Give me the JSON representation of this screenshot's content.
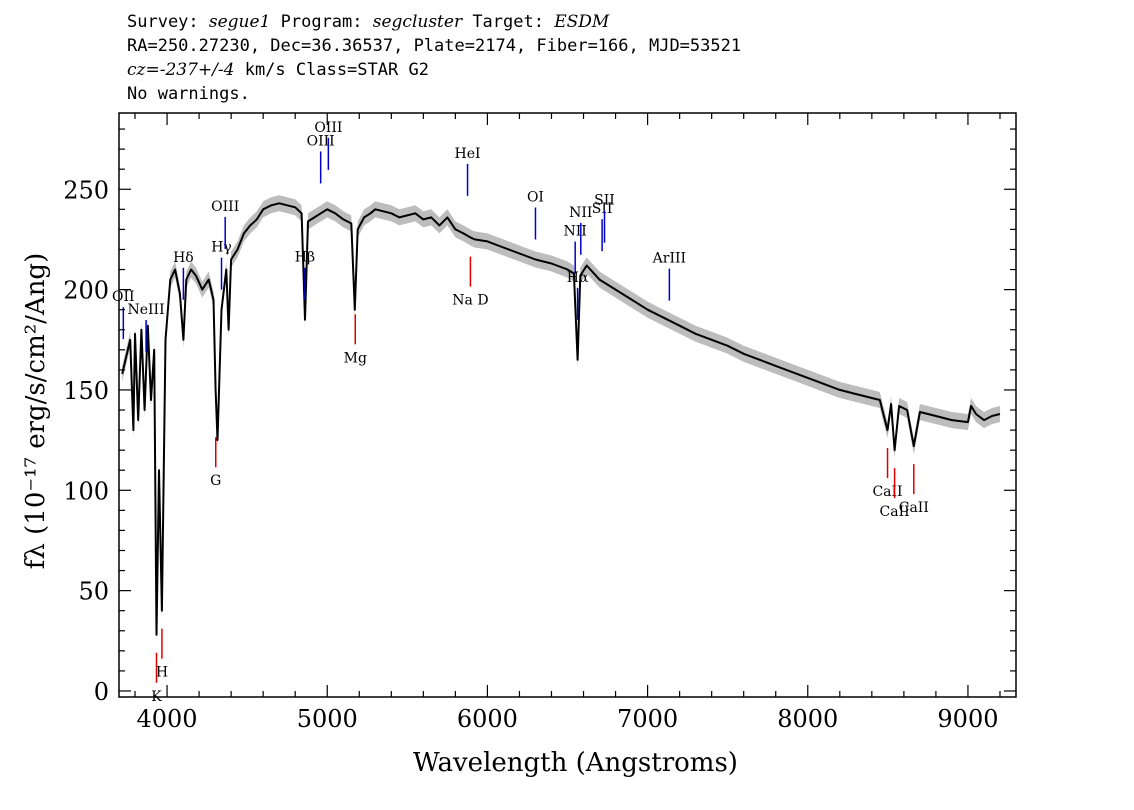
{
  "header": {
    "line1_parts": [
      "Survey: ",
      "segue1",
      " Program: ",
      "segcluster",
      " Target: ",
      "ESDM"
    ],
    "line2": "RA=250.27230, Dec=36.36537, Plate=2174, Fiber=166, MJD=53521",
    "line3_parts": [
      "cz=",
      "-237+/-4",
      " km/s Class=STAR G2"
    ],
    "line4": "No warnings."
  },
  "chart_data": {
    "type": "line",
    "xlabel": "Wavelength (Angstroms)",
    "ylabel": "fλ (10⁻¹⁷ erg/s/cm²/Ang)",
    "xlim": [
      3700,
      9300
    ],
    "ylim": [
      -3,
      288
    ],
    "x_ticks": [
      4000,
      5000,
      6000,
      7000,
      8000,
      9000
    ],
    "y_ticks": [
      0,
      50,
      100,
      150,
      200,
      250
    ],
    "grid": false,
    "legend": "none",
    "colors": {
      "flux": "#000000",
      "error_band": "#bdbdbd",
      "emission": "#0000cc",
      "absorption": "#dd0000"
    },
    "series": [
      {
        "values_x": [
          3720,
          3770,
          3790,
          3800,
          3820,
          3840,
          3860,
          3880,
          3900,
          3920,
          3934,
          3950,
          3968,
          3990,
          4020,
          4050,
          4080,
          4102,
          4120,
          4150,
          4180,
          4220,
          4260,
          4290,
          4303,
          4315,
          4340,
          4370,
          4384,
          4400,
          4440,
          4480,
          4520,
          4560,
          4600,
          4650,
          4700,
          4750,
          4800,
          4840,
          4861,
          4880,
          4920,
          4960,
          5000,
          5050,
          5100,
          5150,
          5172,
          5190,
          5230,
          5270,
          5300,
          5350,
          5400,
          5450,
          5500,
          5550,
          5600,
          5650,
          5700,
          5750,
          5800,
          5850,
          5893,
          5920,
          6000,
          6100,
          6200,
          6300,
          6400,
          6500,
          6540,
          6563,
          6580,
          6620,
          6700,
          6800,
          6900,
          7000,
          7100,
          7200,
          7300,
          7400,
          7500,
          7600,
          7700,
          7800,
          7900,
          8000,
          8100,
          8200,
          8300,
          8400,
          8450,
          8498,
          8520,
          8542,
          8570,
          8620,
          8662,
          8700,
          8800,
          8900,
          9000,
          9020,
          9050,
          9100,
          9150,
          9200
        ],
        "values_y": [
          158,
          175,
          130,
          178,
          135,
          180,
          140,
          182,
          145,
          170,
          28,
          110,
          40,
          175,
          205,
          210,
          198,
          175,
          205,
          210,
          207,
          200,
          205,
          195,
          150,
          125,
          190,
          210,
          180,
          215,
          220,
          228,
          232,
          235,
          240,
          242,
          243,
          242,
          241,
          238,
          185,
          234,
          236,
          238,
          240,
          238,
          235,
          233,
          190,
          230,
          236,
          238,
          240,
          239,
          238,
          236,
          237,
          238,
          235,
          236,
          232,
          236,
          230,
          228,
          226,
          225,
          224,
          221,
          218,
          215,
          213,
          210,
          208,
          165,
          207,
          212,
          205,
          200,
          195,
          190,
          186,
          182,
          178,
          175,
          172,
          168,
          165,
          162,
          159,
          156,
          153,
          150,
          148,
          146,
          145,
          130,
          143,
          120,
          142,
          140,
          122,
          139,
          137,
          135,
          134,
          142,
          138,
          135,
          137,
          138
        ]
      }
    ],
    "emission_lines": [
      {
        "label": "Hβ",
        "wavelength": 4861
      },
      {
        "label": "OIII",
        "wavelength": 4959
      },
      {
        "label": "OIII",
        "wavelength": 5007
      },
      {
        "label": "Hγ",
        "wavelength": 4340
      },
      {
        "label": "OIII",
        "wavelength": 4363
      },
      {
        "label": "Hδ",
        "wavelength": 4102
      },
      {
        "label": "NeIII",
        "wavelength": 3869
      },
      {
        "label": "OII",
        "wavelength": 3727
      },
      {
        "label": "HeI",
        "wavelength": 5876
      },
      {
        "label": "OI",
        "wavelength": 6300
      },
      {
        "label": "NII",
        "wavelength": 6548
      },
      {
        "label": "Hα",
        "wavelength": 6563
      },
      {
        "label": "NII",
        "wavelength": 6583
      },
      {
        "label": "SII",
        "wavelength": 6716
      },
      {
        "label": "SII",
        "wavelength": 6731
      },
      {
        "label": "ArIII",
        "wavelength": 7136
      }
    ],
    "absorption_lines": [
      {
        "label": "K",
        "wavelength": 3934
      },
      {
        "label": "H",
        "wavelength": 3968
      },
      {
        "label": "G",
        "wavelength": 4304
      },
      {
        "label": "Mg",
        "wavelength": 5175
      },
      {
        "label": "Na D",
        "wavelength": 5894
      },
      {
        "label": "CaII",
        "wavelength": 8498
      },
      {
        "label": "CaII",
        "wavelength": 8542
      },
      {
        "label": "CaII",
        "wavelength": 8662
      }
    ]
  }
}
